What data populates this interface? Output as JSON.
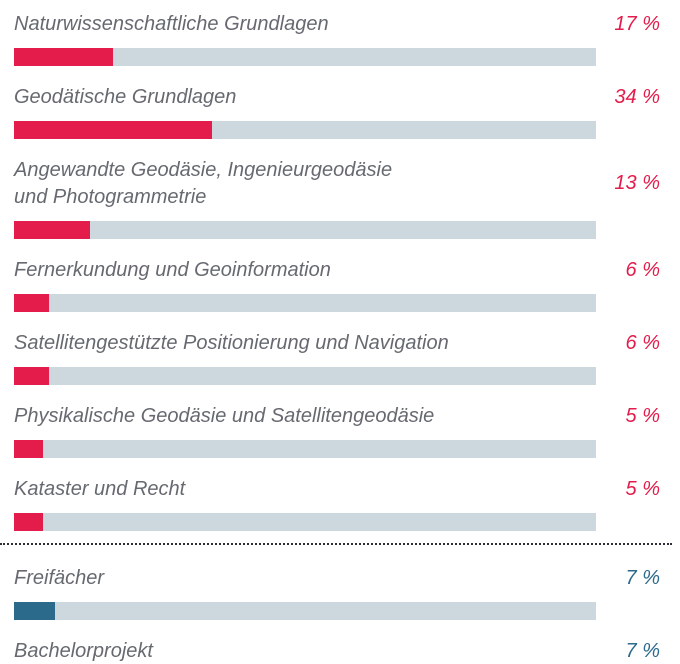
{
  "chart_data": {
    "type": "bar",
    "categories": [
      "Naturwissenschaftliche Grundlagen",
      "Geodätische Grundlagen",
      "Angewandte Geodäsie, Ingenieurgeodäsie\nund Photogrammetrie",
      "Fernerkundung und Geoinformation",
      "Satellitengestützte Positionierung und Navigation",
      "Physikalische Geodäsie und Satellitengeodäsie",
      "Kataster und Recht",
      "Freifächer",
      "Bachelorprojekt"
    ],
    "values": [
      17,
      34,
      13,
      6,
      6,
      5,
      5,
      7,
      7
    ],
    "value_labels": [
      "17 %",
      "34 %",
      "13 %",
      "6 %",
      "6 %",
      "5 %",
      "5 %",
      "7 %",
      "7 %"
    ],
    "colors": [
      "#e31c4b",
      "#e31c4b",
      "#e31c4b",
      "#e31c4b",
      "#e31c4b",
      "#e31c4b",
      "#e31c4b",
      "#2b6a8b",
      "#2b6a8b"
    ],
    "xlim": [
      0,
      100
    ]
  }
}
